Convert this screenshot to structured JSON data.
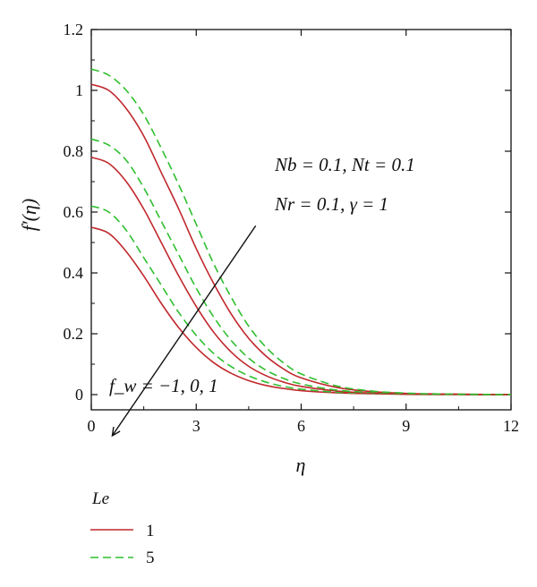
{
  "chart_data": {
    "type": "line",
    "xlabel": "η",
    "ylabel": "f′(η)",
    "xlim": [
      0,
      12
    ],
    "ylim": [
      -0.05,
      1.2
    ],
    "x_ticks": [
      "0",
      "3",
      "6",
      "9",
      "12"
    ],
    "y_ticks": [
      "0",
      "0.2",
      "0.4",
      "0.6",
      "0.8",
      "1",
      "1.2"
    ],
    "grid": false,
    "annotations": {
      "param_line1": "Nb = 0.1, Nt = 0.1",
      "param_line2": "Nr = 0.1, γ = 1",
      "arrow_label": "f_w = −1, 0, 1"
    },
    "legend": {
      "title": "Le",
      "placement": "bottom-left",
      "entries": [
        {
          "label": "1",
          "style": "solid",
          "color": "#c0282d"
        },
        {
          "label": "5",
          "style": "dashed",
          "color": "#2fbf2f"
        }
      ]
    },
    "x": [
      0,
      0.5,
      1,
      1.5,
      2,
      2.5,
      3,
      3.5,
      4,
      4.5,
      5,
      5.5,
      6,
      7,
      8,
      9,
      10,
      12
    ],
    "series": [
      {
        "group": "Le=1",
        "fw": -1,
        "color": "#c0282d",
        "style": "solid",
        "values": [
          0.55,
          0.53,
          0.47,
          0.39,
          0.3,
          0.22,
          0.155,
          0.105,
          0.07,
          0.046,
          0.03,
          0.02,
          0.013,
          0.006,
          0.003,
          0.001,
          0.0,
          0.0
        ]
      },
      {
        "group": "Le=5",
        "fw": -1,
        "color": "#2fbf2f",
        "style": "dashed",
        "values": [
          0.62,
          0.6,
          0.54,
          0.45,
          0.36,
          0.27,
          0.195,
          0.135,
          0.092,
          0.062,
          0.041,
          0.027,
          0.018,
          0.008,
          0.004,
          0.002,
          0.001,
          0.0
        ]
      },
      {
        "group": "Le=1",
        "fw": 0,
        "color": "#c0282d",
        "style": "solid",
        "values": [
          0.78,
          0.76,
          0.7,
          0.61,
          0.5,
          0.39,
          0.29,
          0.205,
          0.14,
          0.093,
          0.062,
          0.041,
          0.027,
          0.012,
          0.005,
          0.002,
          0.001,
          0.0
        ]
      },
      {
        "group": "Le=5",
        "fw": 0,
        "color": "#2fbf2f",
        "style": "dashed",
        "values": [
          0.84,
          0.82,
          0.77,
          0.68,
          0.57,
          0.46,
          0.35,
          0.255,
          0.178,
          0.12,
          0.08,
          0.053,
          0.035,
          0.015,
          0.007,
          0.003,
          0.001,
          0.0
        ]
      },
      {
        "group": "Le=1",
        "fw": 1,
        "color": "#c0282d",
        "style": "solid",
        "values": [
          1.02,
          1.0,
          0.94,
          0.85,
          0.73,
          0.61,
          0.48,
          0.365,
          0.265,
          0.185,
          0.126,
          0.084,
          0.055,
          0.024,
          0.01,
          0.004,
          0.002,
          0.0
        ]
      },
      {
        "group": "Le=5",
        "fw": 1,
        "color": "#2fbf2f",
        "style": "dashed",
        "values": [
          1.07,
          1.05,
          1.0,
          0.92,
          0.81,
          0.69,
          0.56,
          0.43,
          0.32,
          0.225,
          0.155,
          0.104,
          0.068,
          0.029,
          0.012,
          0.005,
          0.002,
          0.0
        ]
      }
    ],
    "arrow": {
      "from": [
        4.7,
        0.555
      ],
      "to": [
        0.6,
        -0.135
      ]
    }
  }
}
